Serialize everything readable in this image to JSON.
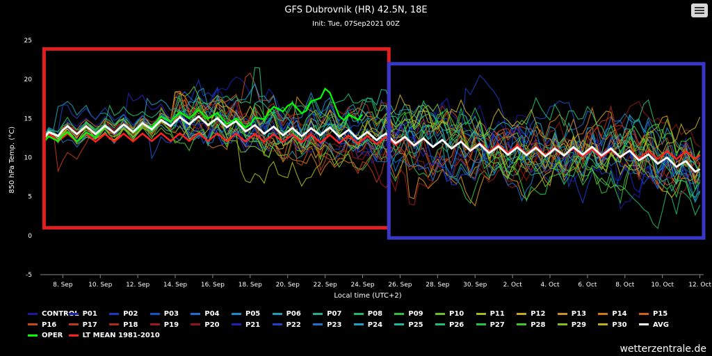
{
  "header": {
    "title": "GFS Dubrovnik (HR) 42.5N, 18E",
    "subtitle": "Init: Tue, 07Sep2021 00Z"
  },
  "menu": {
    "icon": "hamburger-icon"
  },
  "watermark": "wetterzentrale.de",
  "chart_data": {
    "type": "line",
    "title": "GFS Dubrovnik (HR) 42.5N, 18E",
    "subtitle": "Init: Tue, 07Sep2021 00Z",
    "xlabel": "Local time (UTC+2)",
    "ylabel": "850 hPa Temp. (°C)",
    "ylim": [
      -5,
      25
    ],
    "yticks": [
      -5,
      0,
      5,
      10,
      15,
      20,
      25
    ],
    "xlim": [
      6.8,
      42.2
    ],
    "x_unit": "day (Sep 7 2021 = 7; 31 = 1 Oct)",
    "xticks": [
      8,
      10,
      12,
      14,
      16,
      18,
      20,
      22,
      24,
      26,
      28,
      30,
      32,
      34,
      36,
      38,
      40,
      42
    ],
    "xtick_labels": [
      "8. Sep",
      "10. Sep",
      "12. Sep",
      "14. Sep",
      "16. Sep",
      "18. Sep",
      "20. Sep",
      "22. Sep",
      "24. Sep",
      "26. Sep",
      "28. Sep",
      "30. Sep",
      "2. Oct",
      "4. Oct",
      "6. Oct",
      "8. Oct",
      "10. Oct",
      "12. Oct"
    ],
    "grid": false,
    "legend_position": "bottom",
    "members": [
      {
        "name": "CONTROL",
        "color": "#1a1aa0"
      },
      {
        "name": "P01",
        "color": "#1a22b0"
      },
      {
        "name": "P02",
        "color": "#1a3cc0"
      },
      {
        "name": "P03",
        "color": "#1a50cc"
      },
      {
        "name": "P04",
        "color": "#1a6ed6"
      },
      {
        "name": "P05",
        "color": "#1a8ccc"
      },
      {
        "name": "P06",
        "color": "#1aa0b0"
      },
      {
        "name": "P07",
        "color": "#1ab090"
      },
      {
        "name": "P08",
        "color": "#22b866"
      },
      {
        "name": "P09",
        "color": "#30c040"
      },
      {
        "name": "P10",
        "color": "#6cc020"
      },
      {
        "name": "P11",
        "color": "#a8b818"
      },
      {
        "name": "P12",
        "color": "#c8a818"
      },
      {
        "name": "P13",
        "color": "#d09018"
      },
      {
        "name": "P14",
        "color": "#d07818"
      },
      {
        "name": "P15",
        "color": "#d06018"
      },
      {
        "name": "P16",
        "color": "#c84818"
      },
      {
        "name": "P17",
        "color": "#c03818"
      },
      {
        "name": "P18",
        "color": "#b02818"
      },
      {
        "name": "P19",
        "color": "#a01818"
      },
      {
        "name": "P20",
        "color": "#8c1818"
      },
      {
        "name": "P21",
        "color": "#2020b8"
      },
      {
        "name": "P22",
        "color": "#2040c8"
      },
      {
        "name": "P23",
        "color": "#2070d0"
      },
      {
        "name": "P24",
        "color": "#20a0c8"
      },
      {
        "name": "P25",
        "color": "#20b8a0"
      },
      {
        "name": "P26",
        "color": "#20c070"
      },
      {
        "name": "P27",
        "color": "#20c848"
      },
      {
        "name": "P28",
        "color": "#40c828"
      },
      {
        "name": "P29",
        "color": "#80c020"
      },
      {
        "name": "P30",
        "color": "#c0b020"
      }
    ],
    "avg": {
      "name": "AVG",
      "color": "#ffffff",
      "x": [
        7,
        8,
        9,
        10,
        11,
        12,
        13,
        14,
        15,
        16,
        17,
        18,
        19,
        20,
        21,
        22,
        23,
        24,
        25,
        26,
        27,
        28,
        29,
        30,
        31,
        32,
        33,
        34,
        35,
        36,
        37,
        38,
        39,
        40,
        41,
        42
      ],
      "values": [
        12.5,
        13.5,
        13.5,
        13.5,
        13.7,
        13.8,
        14.2,
        14.6,
        14.8,
        14.6,
        14.3,
        13.7,
        13.5,
        13.3,
        13.2,
        13.4,
        13.1,
        12.8,
        12.7,
        12.2,
        12.0,
        11.8,
        11.6,
        11.3,
        11.0,
        10.8,
        10.8,
        10.6,
        10.8,
        10.9,
        10.7,
        10.5,
        10.0,
        9.6,
        9.2,
        8.5
      ]
    },
    "oper": {
      "name": "OPER",
      "color": "#00ff00",
      "x": [
        7,
        8,
        9,
        10,
        11,
        12,
        13,
        14,
        15,
        16,
        17,
        18,
        19,
        20,
        21,
        22,
        23,
        24
      ],
      "values": [
        12.0,
        12.8,
        12.5,
        13.3,
        13.8,
        13.6,
        14.6,
        15.2,
        15.6,
        15.4,
        14.6,
        14.2,
        15.8,
        16.6,
        16.0,
        18.8,
        14.8,
        15.5
      ]
    },
    "lt_mean": {
      "name": "LT MEAN 1981-2010",
      "color": "#ff2020",
      "x": [
        7,
        10,
        13,
        16,
        19,
        22,
        25,
        28,
        31,
        34,
        37,
        40,
        42
      ],
      "values": [
        12.6,
        12.5,
        12.6,
        12.6,
        12.5,
        12.4,
        12.2,
        11.8,
        11.2,
        10.8,
        10.5,
        10.3,
        10.3
      ]
    }
  },
  "annotations": [
    {
      "name": "red-box",
      "color": "#e02020",
      "x_range": [
        7,
        25.4
      ],
      "y_range": [
        1,
        23.9
      ]
    },
    {
      "name": "blue-box",
      "color": "#3838c8",
      "x_range": [
        25.4,
        42.2
      ],
      "y_range": [
        -0.3,
        22
      ]
    }
  ]
}
